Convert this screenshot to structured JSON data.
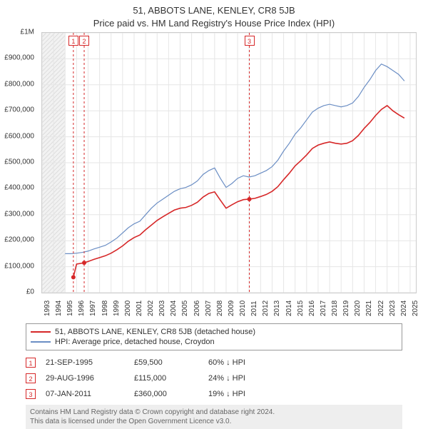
{
  "title": "51, ABBOTS LANE, KENLEY, CR8 5JB",
  "subtitle": "Price paid vs. HM Land Registry's House Price Index (HPI)",
  "chart": {
    "type": "line",
    "background_color": "#ffffff",
    "grid_color": "#e6e6e6",
    "band_color": "#f2f2f2",
    "border_color": "#cccccc",
    "x": {
      "min": 1993,
      "max": 2025.5,
      "ticks": [
        1993,
        1994,
        1995,
        1996,
        1997,
        1998,
        1999,
        2000,
        2001,
        2002,
        2003,
        2004,
        2005,
        2006,
        2007,
        2008,
        2009,
        2010,
        2011,
        2012,
        2013,
        2014,
        2015,
        2016,
        2017,
        2018,
        2019,
        2020,
        2021,
        2022,
        2023,
        2024,
        2025
      ]
    },
    "y": {
      "min": 0,
      "max": 1000000,
      "ticks": [
        0,
        100000,
        200000,
        300000,
        400000,
        500000,
        600000,
        700000,
        800000,
        900000,
        1000000
      ],
      "labels": [
        "£0",
        "£100,000",
        "£200,000",
        "£300,000",
        "£400,000",
        "£500,000",
        "£600,000",
        "£700,000",
        "£800,000",
        "£900,000",
        "£1M"
      ]
    },
    "label_fontsize": 10,
    "title_fontsize": 13,
    "series": [
      {
        "id": "hpi",
        "label": "HPI: Average price, detached house, Croydon",
        "color": "#6b8ec4",
        "line_width": 1.2,
        "points": [
          [
            1995.0,
            150000
          ],
          [
            1995.5,
            150000
          ],
          [
            1996.0,
            152000
          ],
          [
            1996.5,
            155000
          ],
          [
            1997.0,
            160000
          ],
          [
            1997.5,
            168000
          ],
          [
            1998.0,
            175000
          ],
          [
            1998.5,
            182000
          ],
          [
            1999.0,
            195000
          ],
          [
            1999.5,
            210000
          ],
          [
            2000.0,
            230000
          ],
          [
            2000.5,
            250000
          ],
          [
            2001.0,
            265000
          ],
          [
            2001.5,
            275000
          ],
          [
            2002.0,
            300000
          ],
          [
            2002.5,
            325000
          ],
          [
            2003.0,
            345000
          ],
          [
            2003.5,
            360000
          ],
          [
            2004.0,
            375000
          ],
          [
            2004.5,
            390000
          ],
          [
            2005.0,
            400000
          ],
          [
            2005.5,
            405000
          ],
          [
            2006.0,
            415000
          ],
          [
            2006.5,
            430000
          ],
          [
            2007.0,
            455000
          ],
          [
            2007.5,
            470000
          ],
          [
            2008.0,
            480000
          ],
          [
            2008.5,
            440000
          ],
          [
            2009.0,
            405000
          ],
          [
            2009.5,
            420000
          ],
          [
            2010.0,
            440000
          ],
          [
            2010.5,
            450000
          ],
          [
            2011.0,
            445000
          ],
          [
            2011.5,
            450000
          ],
          [
            2012.0,
            460000
          ],
          [
            2012.5,
            470000
          ],
          [
            2013.0,
            485000
          ],
          [
            2013.5,
            510000
          ],
          [
            2014.0,
            545000
          ],
          [
            2014.5,
            575000
          ],
          [
            2015.0,
            610000
          ],
          [
            2015.5,
            635000
          ],
          [
            2016.0,
            665000
          ],
          [
            2016.5,
            695000
          ],
          [
            2017.0,
            710000
          ],
          [
            2017.5,
            720000
          ],
          [
            2018.0,
            725000
          ],
          [
            2018.5,
            720000
          ],
          [
            2019.0,
            715000
          ],
          [
            2019.5,
            720000
          ],
          [
            2020.0,
            730000
          ],
          [
            2020.5,
            755000
          ],
          [
            2021.0,
            790000
          ],
          [
            2021.5,
            820000
          ],
          [
            2022.0,
            855000
          ],
          [
            2022.5,
            880000
          ],
          [
            2023.0,
            870000
          ],
          [
            2023.5,
            855000
          ],
          [
            2024.0,
            840000
          ],
          [
            2024.5,
            815000
          ]
        ]
      },
      {
        "id": "price_paid",
        "label": "51, ABBOTS LANE, KENLEY, CR8 5JB (detached house)",
        "color": "#d62728",
        "line_width": 1.6,
        "points": [
          [
            1995.72,
            59500
          ],
          [
            1996.0,
            110000
          ],
          [
            1996.66,
            115000
          ],
          [
            1997.0,
            120000
          ],
          [
            1997.5,
            128000
          ],
          [
            1998.0,
            135000
          ],
          [
            1998.5,
            142000
          ],
          [
            1999.0,
            152000
          ],
          [
            1999.5,
            165000
          ],
          [
            2000.0,
            180000
          ],
          [
            2000.5,
            198000
          ],
          [
            2001.0,
            212000
          ],
          [
            2001.5,
            222000
          ],
          [
            2002.0,
            242000
          ],
          [
            2002.5,
            260000
          ],
          [
            2003.0,
            278000
          ],
          [
            2003.5,
            292000
          ],
          [
            2004.0,
            305000
          ],
          [
            2004.5,
            318000
          ],
          [
            2005.0,
            325000
          ],
          [
            2005.5,
            328000
          ],
          [
            2006.0,
            336000
          ],
          [
            2006.5,
            348000
          ],
          [
            2007.0,
            368000
          ],
          [
            2007.5,
            382000
          ],
          [
            2008.0,
            388000
          ],
          [
            2008.5,
            356000
          ],
          [
            2009.0,
            325000
          ],
          [
            2009.5,
            338000
          ],
          [
            2010.0,
            350000
          ],
          [
            2010.5,
            358000
          ],
          [
            2011.02,
            360000
          ],
          [
            2011.5,
            363000
          ],
          [
            2012.0,
            370000
          ],
          [
            2012.5,
            378000
          ],
          [
            2013.0,
            390000
          ],
          [
            2013.5,
            408000
          ],
          [
            2014.0,
            435000
          ],
          [
            2014.5,
            460000
          ],
          [
            2015.0,
            488000
          ],
          [
            2015.5,
            508000
          ],
          [
            2016.0,
            530000
          ],
          [
            2016.5,
            555000
          ],
          [
            2017.0,
            568000
          ],
          [
            2017.5,
            575000
          ],
          [
            2018.0,
            580000
          ],
          [
            2018.5,
            575000
          ],
          [
            2019.0,
            572000
          ],
          [
            2019.5,
            575000
          ],
          [
            2020.0,
            585000
          ],
          [
            2020.5,
            605000
          ],
          [
            2021.0,
            632000
          ],
          [
            2021.5,
            655000
          ],
          [
            2022.0,
            682000
          ],
          [
            2022.5,
            705000
          ],
          [
            2023.0,
            720000
          ],
          [
            2023.5,
            700000
          ],
          [
            2024.0,
            685000
          ],
          [
            2024.5,
            672000
          ]
        ]
      }
    ],
    "sale_markers": [
      {
        "n": "1",
        "year": 1995.72,
        "value": 59500
      },
      {
        "n": "2",
        "year": 1996.66,
        "value": 115000
      },
      {
        "n": "3",
        "year": 2011.02,
        "value": 360000
      }
    ],
    "marker_line_color": "#d62728",
    "marker_line_dash": "3,3",
    "marker_dot_color": "#d62728",
    "marker_dot_radius": 3
  },
  "legend": [
    {
      "color": "#d62728",
      "label": "51, ABBOTS LANE, KENLEY, CR8 5JB (detached house)"
    },
    {
      "color": "#6b8ec4",
      "label": "HPI: Average price, detached house, Croydon"
    }
  ],
  "transactions": [
    {
      "n": "1",
      "date": "21-SEP-1995",
      "price": "£59,500",
      "diff": "60% ↓ HPI"
    },
    {
      "n": "2",
      "date": "29-AUG-1996",
      "price": "£115,000",
      "diff": "24% ↓ HPI"
    },
    {
      "n": "3",
      "date": "07-JAN-2011",
      "price": "£360,000",
      "diff": "19% ↓ HPI"
    }
  ],
  "footer_line1": "Contains HM Land Registry data © Crown copyright and database right 2024.",
  "footer_line2": "This data is licensed under the Open Government Licence v3.0."
}
